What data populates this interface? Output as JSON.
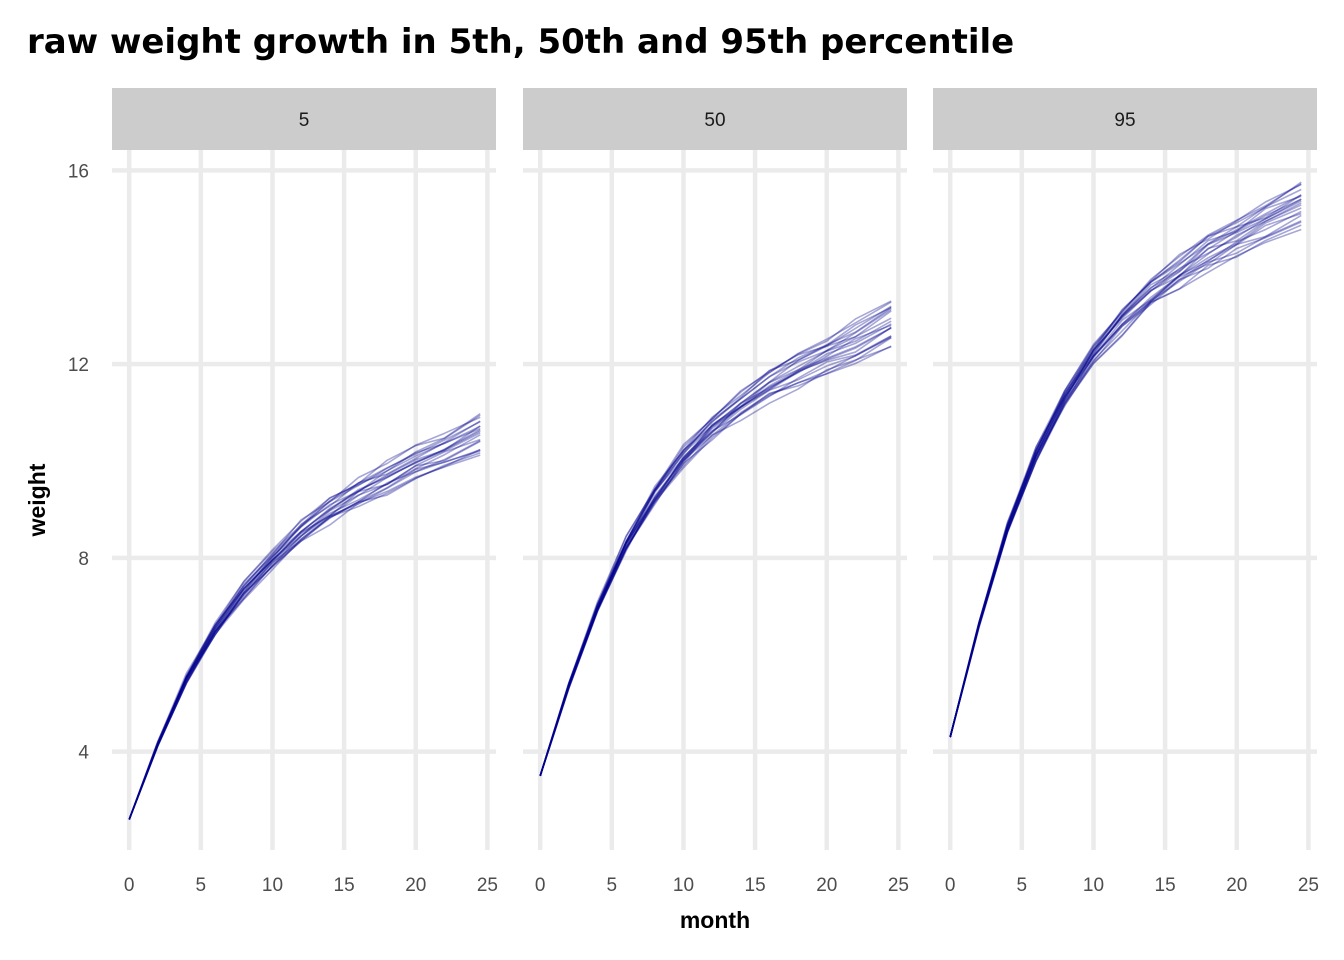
{
  "chart_data": {
    "type": "line",
    "title": "raw weight growth in 5th, 50th and 95th percentile",
    "xlabel": "month",
    "ylabel": "weight",
    "xlim": [
      -1.2,
      25.6
    ],
    "ylim": [
      1.97,
      16.42
    ],
    "x_ticks": [
      "0",
      "5",
      "10",
      "15",
      "20",
      "25"
    ],
    "x_tick_values": [
      0,
      5,
      10,
      15,
      20,
      25
    ],
    "y_ticks": [
      "4",
      "8",
      "12",
      "16"
    ],
    "y_tick_values": [
      4,
      8,
      12,
      16
    ],
    "grid": true,
    "line_color": "#00008B",
    "line_opacity": 0.35,
    "lines_per_panel": 20,
    "x": [
      0,
      2,
      4,
      6,
      8,
      10,
      12,
      14,
      16,
      18,
      20,
      22,
      24.5
    ],
    "facets": [
      {
        "label": "5",
        "median_weight": [
          2.6,
          4.15,
          5.5,
          6.5,
          7.3,
          7.95,
          8.5,
          8.95,
          9.3,
          9.6,
          9.9,
          10.15,
          10.5
        ],
        "end_spread": [
          10.15,
          10.95
        ]
      },
      {
        "label": "50",
        "median_weight": [
          3.5,
          5.35,
          6.95,
          8.25,
          9.25,
          10.05,
          10.65,
          11.1,
          11.5,
          11.8,
          12.1,
          12.35,
          12.75
        ],
        "end_spread": [
          12.4,
          13.3
        ]
      },
      {
        "label": "95",
        "median_weight": [
          4.3,
          6.6,
          8.6,
          10.1,
          11.25,
          12.15,
          12.85,
          13.4,
          13.85,
          14.25,
          14.55,
          14.85,
          15.2
        ],
        "end_spread": [
          14.85,
          15.75
        ]
      }
    ]
  }
}
